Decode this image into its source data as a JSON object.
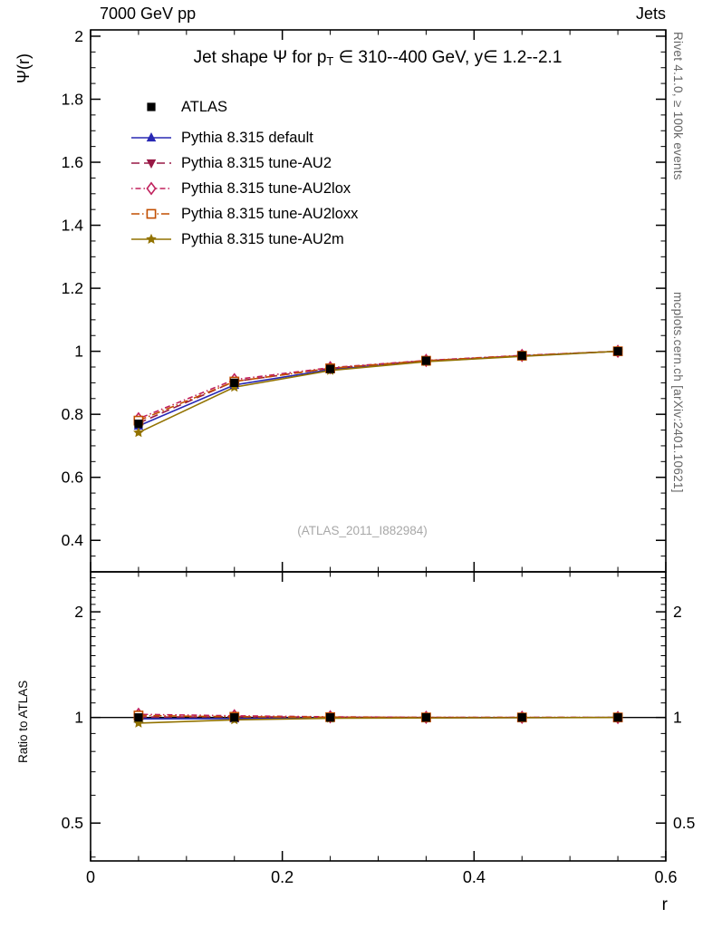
{
  "header": {
    "left": "7000 GeV pp",
    "right": "Jets"
  },
  "side_labels": {
    "top_right": "Rivet 4.1.0, ≥ 100k events",
    "bottom_right": "mcplots.cern.ch [arXiv:2401.10621]"
  },
  "title": {
    "pre": "Jet shape Ψ for p",
    "sub": "T",
    "post": " ∈ 310--400 GeV, y∈ 1.2--2.1"
  },
  "watermark": "(ATLAS_2011_I882984)",
  "axes": {
    "xlabel": "r",
    "ylabel_main": "Ψ(r)",
    "ylabel_ratio": "Ratio to ATLAS"
  },
  "colors": {
    "axis": "#000000",
    "watermark": "#a8a8a8",
    "reference_line": "#000000"
  },
  "chart_data": {
    "type": "line",
    "x": [
      0.05,
      0.15,
      0.25,
      0.35,
      0.45,
      0.55
    ],
    "xlim": [
      0,
      0.6
    ],
    "xticks": [
      0,
      0.2,
      0.4,
      0.6
    ],
    "xtick_labels": [
      "0",
      "0.2",
      "0.4",
      "0.6"
    ],
    "main": {
      "scale": "linear",
      "ylim": [
        0.3,
        2.02
      ],
      "yticks": [
        0.4,
        0.6,
        0.8,
        1.0,
        1.2,
        1.4,
        1.6,
        1.8,
        2.0
      ],
      "ytick_labels": [
        "0.4",
        "0.6",
        "0.8",
        "1",
        "1.2",
        "1.4",
        "1.6",
        "1.8",
        "2"
      ],
      "minor_step": 0.05
    },
    "ratio": {
      "scale": "log",
      "ylim": [
        0.39,
        2.6
      ],
      "yticks": [
        0.5,
        1,
        2
      ],
      "ytick_labels": [
        "0.5",
        "1",
        "2"
      ],
      "ref_line": 1,
      "minor_step": 0.1
    },
    "series": [
      {
        "name": "ATLAS",
        "color": "#000000",
        "marker": "square-filled",
        "line": "none",
        "values": [
          0.77,
          0.9,
          0.944,
          0.97,
          0.986,
          1.0
        ],
        "errors": [
          0.018,
          0.009,
          0.006,
          0.004,
          0.003,
          0.002
        ]
      },
      {
        "name": "Pythia 8.315 default",
        "color": "#2828b4",
        "marker": "triangle-up-filled",
        "line": "solid",
        "values": [
          0.763,
          0.893,
          0.942,
          0.968,
          0.985,
          1.0
        ]
      },
      {
        "name": "Pythia 8.315 tune-AU2",
        "color": "#981845",
        "marker": "triangle-down-filled",
        "line": "dashed",
        "values": [
          0.772,
          0.904,
          0.946,
          0.97,
          0.986,
          1.0
        ]
      },
      {
        "name": "Pythia 8.315 tune-AU2lox",
        "color": "#c0205c",
        "marker": "diamond-open",
        "line": "dashdot-short",
        "values": [
          0.786,
          0.91,
          0.948,
          0.971,
          0.987,
          1.0
        ]
      },
      {
        "name": "Pythia 8.315 tune-AU2loxx",
        "color": "#c24e00",
        "marker": "square-open",
        "line": "dashdot-long",
        "values": [
          0.78,
          0.904,
          0.946,
          0.97,
          0.986,
          1.0
        ]
      },
      {
        "name": "Pythia 8.315 tune-AU2m",
        "color": "#927200",
        "marker": "star-filled",
        "line": "solid",
        "values": [
          0.742,
          0.886,
          0.939,
          0.967,
          0.984,
          1.0
        ]
      }
    ]
  }
}
